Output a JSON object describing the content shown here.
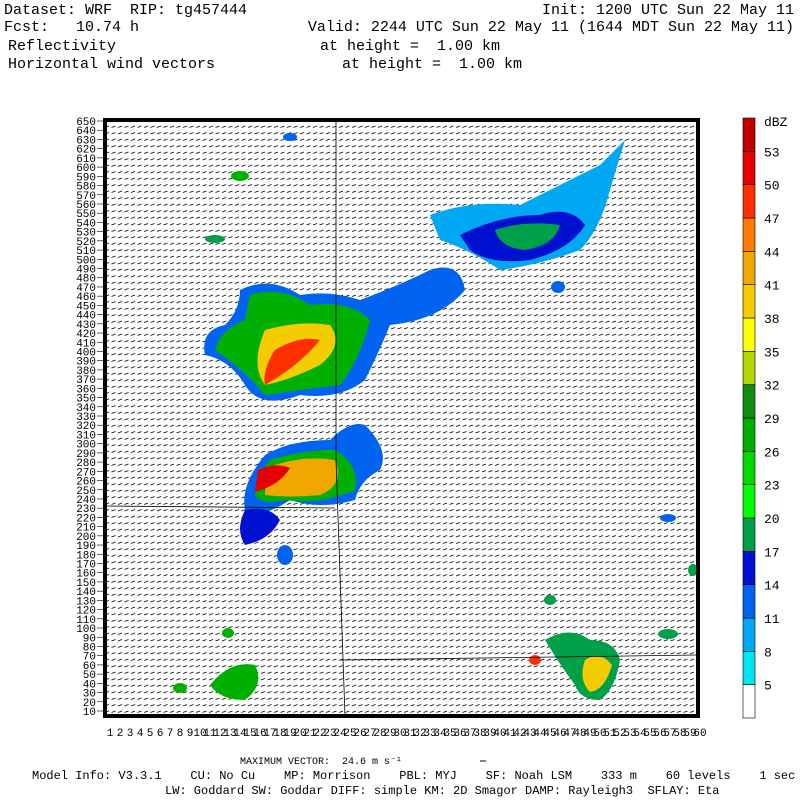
{
  "header": {
    "dataset": "Dataset: WRF  RIP: tg457444",
    "init": "Init: 1200 UTC Sun 22 May 11",
    "fcst": "Fcst:   10.74 h",
    "valid": "Valid: 2244 UTC Sun 22 May 11 (1644 MDT Sun 22 May 11)",
    "field1": "Reflectivity",
    "field1_height": "at height =  1.00 km",
    "field2": "Horizontal wind vectors",
    "field2_height": "at height =  1.00 km"
  },
  "y_axis": {
    "labels": [
      "10",
      "20",
      "30",
      "40",
      "50",
      "60",
      "70",
      "80",
      "90",
      "100",
      "110",
      "120",
      "130",
      "140",
      "150",
      "160",
      "170",
      "180",
      "190",
      "200",
      "210",
      "220",
      "230",
      "240",
      "250",
      "260",
      "270",
      "280",
      "290",
      "300",
      "310",
      "320",
      "330",
      "340",
      "350",
      "360",
      "370",
      "380",
      "390",
      "400",
      "410",
      "420",
      "430",
      "440",
      "450",
      "460",
      "470",
      "480",
      "490",
      "500",
      "510",
      "520",
      "530",
      "540",
      "550",
      "560",
      "570",
      "580",
      "590",
      "600",
      "610",
      "620",
      "630",
      "640",
      "650"
    ]
  },
  "x_axis": {
    "labels": [
      "1",
      "2",
      "3",
      "4",
      "5",
      "6",
      "7",
      "8",
      "9",
      "10",
      "11",
      "12",
      "13",
      "14",
      "15",
      "16",
      "17",
      "18",
      "19",
      "20",
      "21",
      "22",
      "23",
      "24",
      "25",
      "26",
      "27",
      "28",
      "29",
      "30",
      "31",
      "32",
      "33",
      "34",
      "35",
      "36",
      "37",
      "38",
      "39",
      "40",
      "41",
      "42",
      "43",
      "44",
      "45",
      "46",
      "47",
      "48",
      "49",
      "50",
      "51",
      "52",
      "53",
      "54",
      "55",
      "56",
      "57",
      "58",
      "59",
      "60"
    ]
  },
  "colorbar": {
    "unit": "dBZ",
    "levels": [
      {
        "label": "5",
        "color": "#00e6f0"
      },
      {
        "label": "8",
        "color": "#00a8f4"
      },
      {
        "label": "11",
        "color": "#0064f0"
      },
      {
        "label": "14",
        "color": "#0010d0"
      },
      {
        "label": "17",
        "color": "#00a048"
      },
      {
        "label": "20",
        "color": "#00ff00"
      },
      {
        "label": "23",
        "color": "#00d800"
      },
      {
        "label": "26",
        "color": "#00b000"
      },
      {
        "label": "29",
        "color": "#108c10"
      },
      {
        "label": "32",
        "color": "#b4d800"
      },
      {
        "label": "35",
        "color": "#ffff00"
      },
      {
        "label": "38",
        "color": "#f4cc00"
      },
      {
        "label": "41",
        "color": "#f0a800"
      },
      {
        "label": "44",
        "color": "#ff7c00"
      },
      {
        "label": "47",
        "color": "#ff3000"
      },
      {
        "label": "50",
        "color": "#e80000"
      },
      {
        "label": "53",
        "color": "#c00000"
      }
    ]
  },
  "footer": {
    "max_vector": "MAXIMUM VECTOR:  24.6 m s⁻¹",
    "model_info": "Model Info: V3.3.1    CU: No Cu    MP: Morrison    PBL: MYJ    SF: Noah LSM    333 m    60 levels    1 sec",
    "physics": "LW: Goddard SW: Goddar DIFF: simple KM: 2D Smagor DAMP: Rayleigh3  SFLAY: Eta"
  }
}
